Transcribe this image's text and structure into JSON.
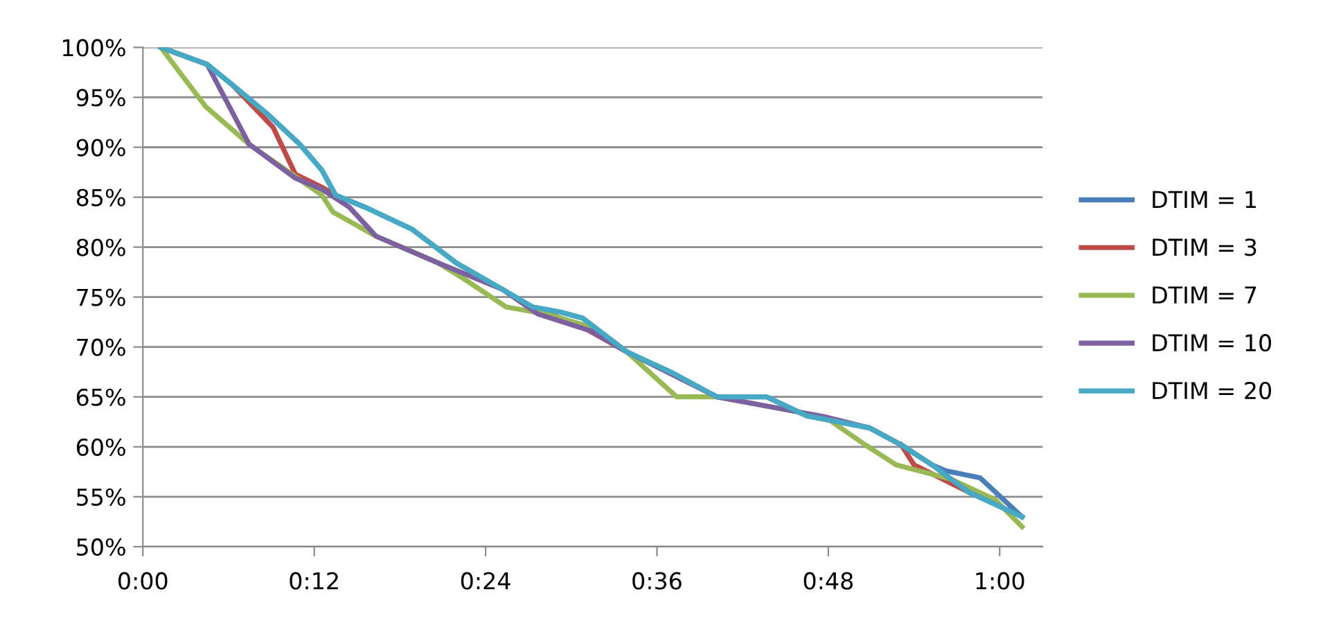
{
  "chart_data": {
    "type": "line",
    "xlim": [
      0,
      1.05
    ],
    "ylim": [
      50,
      100
    ],
    "xticks": [
      {
        "value": 0,
        "label": "0:00"
      },
      {
        "value": 0.2,
        "label": "0:12"
      },
      {
        "value": 0.4,
        "label": "0:24"
      },
      {
        "value": 0.6,
        "label": "0:36"
      },
      {
        "value": 0.8,
        "label": "0:48"
      },
      {
        "value": 1.0,
        "label": "1:00"
      }
    ],
    "yticks": [
      {
        "value": 50,
        "label": "50%"
      },
      {
        "value": 55,
        "label": "55%"
      },
      {
        "value": 60,
        "label": "60%"
      },
      {
        "value": 65,
        "label": "65%"
      },
      {
        "value": 70,
        "label": "70%"
      },
      {
        "value": 75,
        "label": "75%"
      },
      {
        "value": 80,
        "label": "80%"
      },
      {
        "value": 85,
        "label": "85%"
      },
      {
        "value": 90,
        "label": "90%"
      },
      {
        "value": 95,
        "label": "95%"
      },
      {
        "value": 100,
        "label": "100%"
      }
    ],
    "grid": "y",
    "legend": "right",
    "marker": "none",
    "line_style": "solid",
    "series": [
      {
        "name": "DTIM = 1",
        "color": "#4a7ebb",
        "x": [
          0.021,
          0.075,
          0.105,
          0.147,
          0.183,
          0.209,
          0.225,
          0.262,
          0.314,
          0.366,
          0.419,
          0.455,
          0.487,
          0.513,
          0.565,
          0.618,
          0.67,
          0.728,
          0.775,
          0.848,
          0.885,
          0.921,
          0.937,
          0.977,
          1.026
        ],
        "values": [
          100,
          98.3,
          96.2,
          93.2,
          90.3,
          87.7,
          85.2,
          83.9,
          81.8,
          78.4,
          75.8,
          74,
          73.5,
          72.9,
          69.5,
          67.4,
          65,
          65,
          63.1,
          61.9,
          60.2,
          58.2,
          57.6,
          56.9,
          53
        ]
      },
      {
        "name": "DTIM = 3",
        "color": "#be4b48",
        "x": [
          0.105,
          0.152,
          0.178,
          0.209,
          0.225,
          0.3,
          0.455,
          0.513,
          0.565,
          0.7,
          0.885,
          0.9,
          0.963
        ],
        "values": [
          96.2,
          92,
          87.3,
          86,
          85.2,
          null,
          74,
          72,
          69.5,
          null,
          60.2,
          58.2,
          55.5
        ]
      },
      {
        "name": "DTIM = 7",
        "color": "#98b954",
        "x": [
          0.021,
          0.073,
          0.124,
          0.209,
          0.222,
          0.272,
          0.345,
          0.377,
          0.424,
          0.471,
          0.523,
          0.565,
          0.623,
          0.67,
          0.796,
          0.843,
          0.879,
          0.942,
          0.995,
          1.026
        ],
        "values": [
          100,
          94.1,
          90.3,
          85.2,
          83.5,
          81.1,
          78.4,
          76.7,
          74,
          73.3,
          72,
          69.5,
          65,
          65,
          63,
          60.2,
          58.2,
          56.8,
          54.7,
          52
        ]
      },
      {
        "name": "DTIM = 10",
        "color": "#7d60a0",
        "x": [
          0.021,
          0.075,
          0.124,
          0.178,
          0.209,
          0.241,
          0.272,
          0.345,
          0.419,
          0.461,
          0.523,
          0.565,
          0.67,
          0.796,
          0.848,
          0.885,
          0.921,
          0.963,
          1.026
        ],
        "values": [
          100,
          98.3,
          90.3,
          86.9,
          85.8,
          84,
          81.1,
          78.4,
          75.8,
          73.3,
          71.6,
          69.5,
          65,
          63,
          61.9,
          60.2,
          58.2,
          55.5,
          53
        ]
      },
      {
        "name": "DTIM = 20",
        "color": "#46aac5",
        "x": [
          0.021,
          0.075,
          0.105,
          0.147,
          0.183,
          0.209,
          0.225,
          0.262,
          0.314,
          0.366,
          0.419,
          0.455,
          0.487,
          0.513,
          0.565,
          0.618,
          0.67,
          0.728,
          0.775,
          0.848,
          0.885,
          0.921,
          0.963,
          1.026
        ],
        "values": [
          100,
          98.3,
          96.2,
          93.2,
          90.3,
          87.7,
          85.2,
          83.9,
          81.8,
          78.4,
          75.8,
          74,
          73.5,
          72.9,
          69.5,
          67.4,
          65,
          65,
          63.1,
          61.9,
          60.2,
          58.2,
          55.5,
          53
        ]
      }
    ]
  }
}
